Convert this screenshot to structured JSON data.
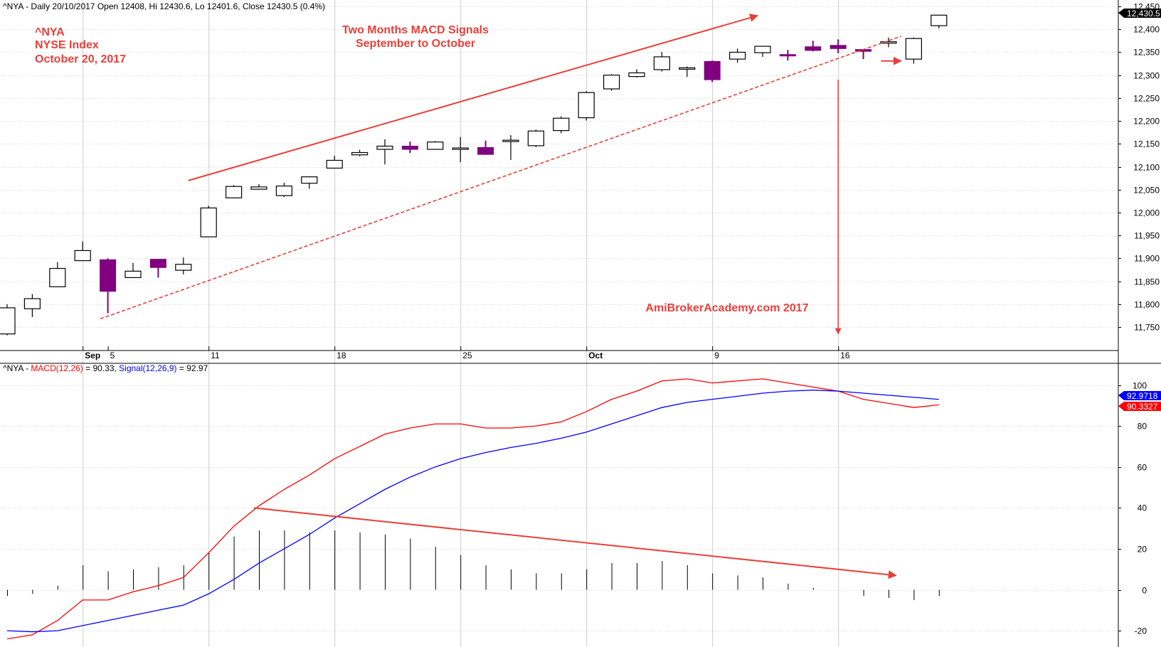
{
  "header": {
    "price_info": "^NYA - Daily 20/10/2017 Open 12408, Hi 12430.6, Lo 12401.6, Close 12430.5 (0.4%)",
    "macd_prefix": "^NYA - ",
    "macd_label": "MACD(12,26)",
    "macd_value": " = 90.33, ",
    "signal_label": "Signal(12,26,9)",
    "signal_value": " = 92.97"
  },
  "annotations": {
    "ticker": "^NYA",
    "index_name": "NYSE Index",
    "date": "October 20, 2017",
    "title_line1": "Two Months MACD Signals",
    "title_line2": "September to October",
    "watermark": "AmiBrokerAcademy.com  2017"
  },
  "colors": {
    "annotation": "#e8403a",
    "bear_candle": "#800080",
    "bull_candle": "#ffffff",
    "macd_line": "#ff0000",
    "signal_line": "#0000ff",
    "trend_line": "#e8403a"
  },
  "tags": {
    "price_last": "12,430.5",
    "signal_last": "92.9718",
    "macd_last": "90.3327"
  },
  "chart_data": [
    {
      "type": "candlestick",
      "title": "^NYA NYSE Index",
      "ylim": [
        11700,
        12460
      ],
      "yticks": [
        11750,
        11800,
        11850,
        11900,
        11950,
        12000,
        12050,
        12100,
        12150,
        12200,
        12250,
        12300,
        12350,
        12400,
        12450
      ],
      "ytick_labels": [
        "11,750",
        "11,800",
        "11,850",
        "11,900",
        "11,950",
        "12,000",
        "12,050",
        "12,100",
        "12,150",
        "12,200",
        "12,250",
        "12,300",
        "12,350",
        "12,400",
        "12,450"
      ],
      "x_labels": [
        {
          "index": 3,
          "text": "Sep",
          "bold": true
        },
        {
          "index": 4,
          "text": "5",
          "bold": false
        },
        {
          "index": 8,
          "text": "11",
          "bold": false
        },
        {
          "index": 13,
          "text": "18",
          "bold": false
        },
        {
          "index": 18,
          "text": "25",
          "bold": false
        },
        {
          "index": 23,
          "text": "Oct",
          "bold": true
        },
        {
          "index": 28,
          "text": "9",
          "bold": false
        },
        {
          "index": 33,
          "text": "16",
          "bold": false
        }
      ],
      "vgrid_indices": [
        3,
        8,
        13,
        18,
        23,
        28,
        33
      ],
      "candles": [
        {
          "o": 11735,
          "h": 11800,
          "l": 11732,
          "c": 11792
        },
        {
          "o": 11790,
          "h": 11822,
          "l": 11772,
          "c": 11812
        },
        {
          "o": 11838,
          "h": 11892,
          "l": 11838,
          "c": 11878
        },
        {
          "o": 11895,
          "h": 11937,
          "l": 11895,
          "c": 11917
        },
        {
          "o": 11897,
          "h": 11900,
          "l": 11780,
          "c": 11828
        },
        {
          "o": 11858,
          "h": 11890,
          "l": 11858,
          "c": 11872
        },
        {
          "o": 11898,
          "h": 11898,
          "l": 11858,
          "c": 11880
        },
        {
          "o": 11874,
          "h": 11902,
          "l": 11865,
          "c": 11887
        },
        {
          "o": 11947,
          "h": 12015,
          "l": 11947,
          "c": 12010
        },
        {
          "o": 12032,
          "h": 12060,
          "l": 12032,
          "c": 12057
        },
        {
          "o": 12051,
          "h": 12062,
          "l": 12050,
          "c": 12056
        },
        {
          "o": 12037,
          "h": 12065,
          "l": 12034,
          "c": 12058
        },
        {
          "o": 12064,
          "h": 12079,
          "l": 12052,
          "c": 12078
        },
        {
          "o": 12097,
          "h": 12124,
          "l": 12097,
          "c": 12114
        },
        {
          "o": 12126,
          "h": 12137,
          "l": 12123,
          "c": 12131
        },
        {
          "o": 12138,
          "h": 12160,
          "l": 12105,
          "c": 12145
        },
        {
          "o": 12145,
          "h": 12155,
          "l": 12130,
          "c": 12138
        },
        {
          "o": 12138,
          "h": 12156,
          "l": 12138,
          "c": 12154
        },
        {
          "o": 12141,
          "h": 12165,
          "l": 12110,
          "c": 12141
        },
        {
          "o": 12142,
          "h": 12157,
          "l": 12126,
          "c": 12127
        },
        {
          "o": 12156,
          "h": 12169,
          "l": 12115,
          "c": 12158
        },
        {
          "o": 12146,
          "h": 12181,
          "l": 12143,
          "c": 12178
        },
        {
          "o": 12179,
          "h": 12210,
          "l": 12173,
          "c": 12206
        },
        {
          "o": 12207,
          "h": 12265,
          "l": 12201,
          "c": 12262
        },
        {
          "o": 12270,
          "h": 12302,
          "l": 12266,
          "c": 12300
        },
        {
          "o": 12297,
          "h": 12313,
          "l": 12295,
          "c": 12305
        },
        {
          "o": 12312,
          "h": 12351,
          "l": 12308,
          "c": 12340
        },
        {
          "o": 12314,
          "h": 12319,
          "l": 12296,
          "c": 12316
        },
        {
          "o": 12330,
          "h": 12332,
          "l": 12285,
          "c": 12290
        },
        {
          "o": 12335,
          "h": 12358,
          "l": 12327,
          "c": 12350
        },
        {
          "o": 12349,
          "h": 12363,
          "l": 12340,
          "c": 12363
        },
        {
          "o": 12345,
          "h": 12355,
          "l": 12332,
          "c": 12343
        },
        {
          "o": 12362,
          "h": 12375,
          "l": 12352,
          "c": 12354
        },
        {
          "o": 12365,
          "h": 12378,
          "l": 12348,
          "c": 12358
        },
        {
          "o": 12356,
          "h": 12356,
          "l": 12335,
          "c": 12352
        },
        {
          "o": 12371,
          "h": 12382,
          "l": 12361,
          "c": 12373
        },
        {
          "o": 12335,
          "h": 12382,
          "l": 12325,
          "c": 12380
        },
        {
          "o": 12408,
          "h": 12431,
          "l": 12402,
          "c": 12431
        }
      ],
      "trendlines": [
        {
          "style": "solid",
          "from": {
            "index": 7.2,
            "value": 12070
          },
          "to": {
            "index": 29.8,
            "value": 12430
          }
        },
        {
          "style": "dashed",
          "from": {
            "index": 3.7,
            "value": 11768
          },
          "to": {
            "index": 35.5,
            "value": 12385
          }
        },
        {
          "style": "vertical-arrow",
          "from": {
            "index": 33,
            "value": 12290
          },
          "to": {
            "index": 33,
            "value": 11735
          }
        },
        {
          "style": "short-arrow",
          "from": {
            "index": 34.7,
            "value": 12331
          },
          "to": {
            "index": 35.5,
            "value": 12331
          }
        }
      ]
    },
    {
      "type": "line",
      "title": "MACD(12,26) / Signal(12,26,9)",
      "ylim": [
        -28,
        108
      ],
      "yticks": [
        -20,
        0,
        20,
        40,
        60,
        80,
        100
      ],
      "ytick_labels": [
        "-20",
        "0",
        "20",
        "40",
        "60",
        "80",
        "100"
      ],
      "series": [
        {
          "name": "MACD(12,26)",
          "color": "#ff0000",
          "values": [
            -24,
            -22,
            -15,
            -5,
            -5,
            -1,
            2,
            6,
            18,
            31,
            41,
            49,
            56,
            64,
            70,
            76,
            79,
            81,
            81,
            79,
            79,
            80,
            82,
            87,
            93,
            97,
            102,
            103,
            101,
            102,
            103,
            101,
            99,
            97,
            93,
            91,
            89,
            90.33
          ]
        },
        {
          "name": "Signal(12,26,9)",
          "color": "#0000ff",
          "values": [
            -20,
            -20.5,
            -20,
            -17.5,
            -15,
            -12.5,
            -10,
            -7.5,
            -2,
            5,
            13,
            20,
            27,
            35,
            42,
            49,
            55,
            60,
            64,
            67,
            69.5,
            71.5,
            74,
            77,
            81,
            85,
            89,
            91.5,
            93,
            94.5,
            96,
            97,
            97.5,
            97,
            96,
            95,
            94,
            92.97
          ]
        }
      ],
      "histogram": [
        -3,
        -2,
        2,
        12,
        9,
        10,
        11,
        12,
        18,
        26,
        29,
        29,
        28,
        29,
        28,
        27,
        25,
        21,
        17,
        12,
        10,
        8,
        8,
        10,
        13,
        13,
        14,
        12,
        8,
        7,
        6,
        3,
        1,
        0,
        -3,
        -4,
        -5,
        -3
      ],
      "trendlines": [
        {
          "style": "solid-arrow",
          "from": {
            "index": 9.8,
            "value": 40
          },
          "to": {
            "index": 35.3,
            "value": 7
          }
        }
      ]
    }
  ]
}
